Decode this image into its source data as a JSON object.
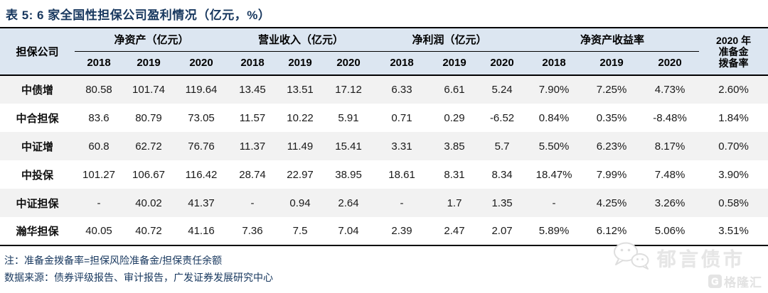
{
  "title": "表 5:  6 家全国性担保公司盈利情况（亿元，%）",
  "table": {
    "company_header": "担保公司",
    "groups": [
      {
        "label": "净资产（亿元）",
        "years": [
          "2018",
          "2019",
          "2020"
        ]
      },
      {
        "label": "营业收入（亿元）",
        "years": [
          "2018",
          "2019",
          "2020"
        ]
      },
      {
        "label": "净利润（亿元）",
        "years": [
          "2018",
          "2019",
          "2020"
        ]
      },
      {
        "label": "净资产收益率",
        "years": [
          "2018",
          "2019",
          "2020"
        ]
      }
    ],
    "reserve_header_lines": [
      "2020 年",
      "准备金",
      "拨备率"
    ],
    "rows": [
      {
        "company": "中债增",
        "values": [
          "80.58",
          "101.74",
          "119.64",
          "13.45",
          "13.51",
          "17.12",
          "6.33",
          "6.61",
          "5.24",
          "7.90%",
          "7.25%",
          "4.73%",
          "2.60%"
        ]
      },
      {
        "company": "中合担保",
        "values": [
          "83.6",
          "80.79",
          "73.05",
          "11.57",
          "10.22",
          "5.91",
          "0.71",
          "0.29",
          "-6.52",
          "0.84%",
          "0.35%",
          "-8.48%",
          "1.84%"
        ]
      },
      {
        "company": "中证增",
        "values": [
          "60.8",
          "62.72",
          "76.76",
          "11.37",
          "11.49",
          "15.41",
          "3.31",
          "3.85",
          "5.7",
          "5.50%",
          "6.23%",
          "8.17%",
          "0.70%"
        ]
      },
      {
        "company": "中投保",
        "values": [
          "101.27",
          "106.67",
          "116.42",
          "28.74",
          "22.97",
          "38.95",
          "18.61",
          "8.31",
          "8.34",
          "18.47%",
          "7.99%",
          "7.48%",
          "3.90%"
        ]
      },
      {
        "company": "中证担保",
        "values": [
          "-",
          "40.02",
          "41.37",
          "-",
          "0.94",
          "2.64",
          "-",
          "1.7",
          "1.35",
          "-",
          "4.25%",
          "3.26%",
          "0.58%"
        ]
      },
      {
        "company": "瀚华担保",
        "values": [
          "40.05",
          "40.72",
          "41.16",
          "7.36",
          "7.5",
          "7.04",
          "2.39",
          "2.47",
          "2.07",
          "5.89%",
          "6.12%",
          "5.06%",
          "3.51%"
        ]
      }
    ]
  },
  "notes": {
    "note": "注：准备金拨备率=担保风险准备金/担保责任余额",
    "source": "数据来源：债券评级报告、审计报告，广发证券发展研究中心"
  },
  "watermark": {
    "label": "郁言债市",
    "icon": "wechat-icon"
  },
  "logo": {
    "label": "格隆汇",
    "icon": "g-logo-icon",
    "icon_letter": "G"
  },
  "colors": {
    "title_navy": "#17375e",
    "header_bg": "#dce6f1",
    "stripe_bg": "#f2f2f2",
    "border_black": "#000000",
    "watermark_gray": "#e6e6e6"
  }
}
